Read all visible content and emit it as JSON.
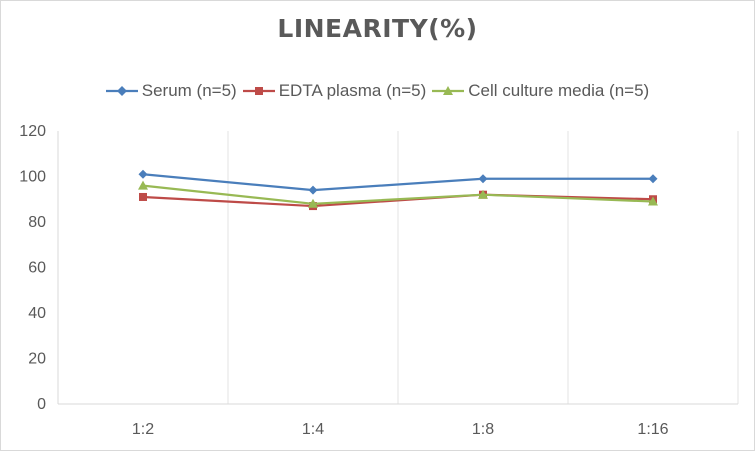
{
  "chart_data": {
    "type": "line",
    "title": "LINEARITY(%)",
    "xlabel": "",
    "ylabel": "",
    "categories": [
      "1:2",
      "1:4",
      "1:8",
      "1:16"
    ],
    "ylim": [
      0,
      120
    ],
    "yticks": [
      0,
      20,
      40,
      60,
      80,
      100,
      120
    ],
    "grid": "vertical",
    "legend": "top",
    "series": [
      {
        "name": "Serum (n=5)",
        "values": [
          101,
          94,
          99,
          99
        ],
        "color": "#4a7ebb",
        "marker": "diamond"
      },
      {
        "name": "EDTA plasma (n=5)",
        "values": [
          91,
          87,
          92,
          90
        ],
        "color": "#be4b48",
        "marker": "square"
      },
      {
        "name": "Cell culture media (n=5)",
        "values": [
          96,
          88,
          92,
          89
        ],
        "color": "#98b954",
        "marker": "triangle"
      }
    ]
  }
}
